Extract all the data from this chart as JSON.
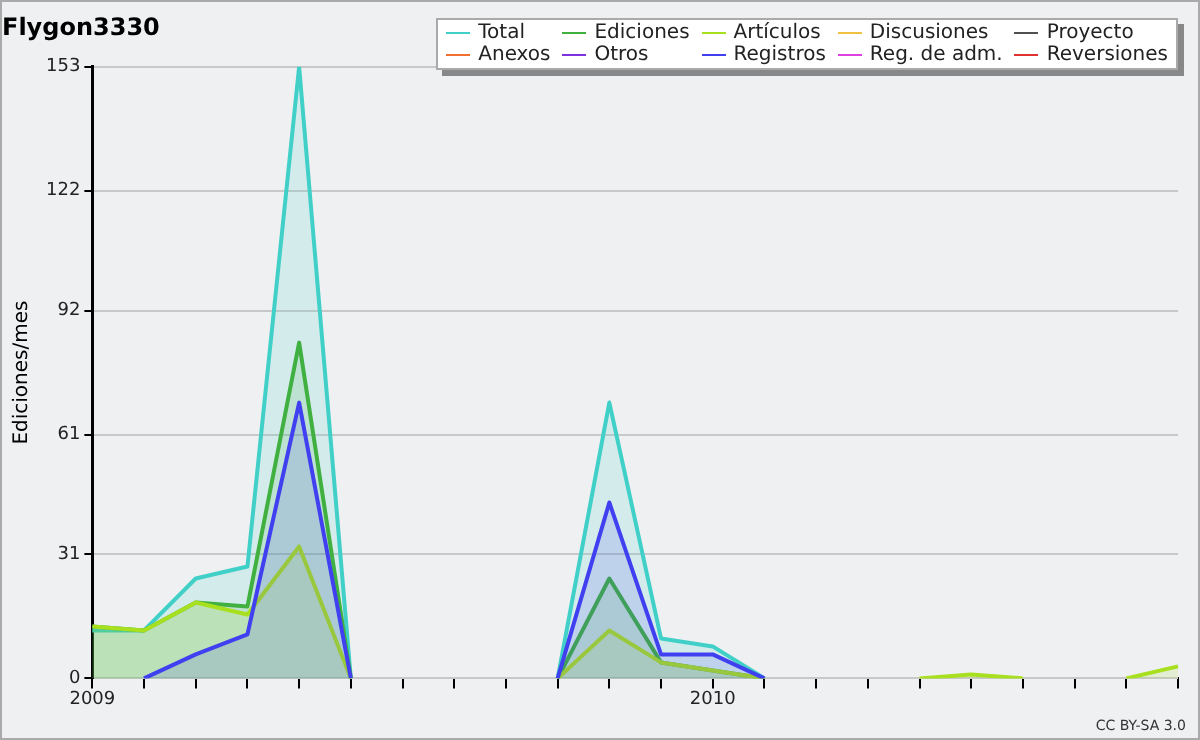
{
  "chart_data": {
    "type": "area",
    "title": "Flygon3330",
    "ylabel": "Ediciones/mes",
    "categories": [
      "2009",
      null,
      null,
      null,
      null,
      null,
      null,
      null,
      null,
      null,
      null,
      null,
      "2010",
      null,
      null,
      null,
      null,
      null,
      null,
      null,
      null,
      null
    ],
    "series": [
      {
        "name": "Total",
        "color": "#40d0c8",
        "values": [
          12,
          12,
          25,
          28,
          153,
          0,
          null,
          null,
          null,
          0,
          69,
          10,
          8,
          0,
          null,
          null,
          null,
          null,
          null,
          null,
          null,
          null
        ]
      },
      {
        "name": "Ediciones",
        "color": "#40b040",
        "values": [
          13,
          12,
          19,
          18,
          84,
          0,
          null,
          null,
          null,
          0,
          25,
          4,
          2,
          0,
          null,
          null,
          null,
          null,
          null,
          null,
          null,
          null
        ]
      },
      {
        "name": "Artículos",
        "color": "#a8e020",
        "values": [
          13,
          12,
          19,
          16,
          33,
          0,
          null,
          null,
          null,
          0,
          12,
          4,
          2,
          0,
          null,
          null,
          0,
          1,
          0,
          null,
          0,
          3
        ]
      },
      {
        "name": "Discusiones",
        "color": "#f0c040",
        "values": [
          null,
          null,
          null,
          null,
          null,
          null,
          null,
          null,
          null,
          null,
          null,
          null,
          null,
          null,
          null,
          null,
          null,
          null,
          null,
          null,
          null,
          null
        ]
      },
      {
        "name": "Proyecto",
        "color": "#505050",
        "values": [
          null,
          null,
          null,
          null,
          null,
          null,
          null,
          null,
          null,
          null,
          null,
          null,
          null,
          null,
          null,
          null,
          null,
          null,
          null,
          null,
          null,
          null
        ]
      },
      {
        "name": "Anexos",
        "color": "#f07030",
        "values": [
          null,
          null,
          null,
          null,
          null,
          null,
          null,
          null,
          null,
          null,
          null,
          null,
          null,
          null,
          null,
          null,
          null,
          null,
          null,
          null,
          null,
          null
        ]
      },
      {
        "name": "Otros",
        "color": "#8030e0",
        "values": [
          null,
          null,
          null,
          null,
          null,
          null,
          null,
          null,
          null,
          null,
          null,
          null,
          null,
          null,
          null,
          null,
          null,
          null,
          null,
          null,
          null,
          null
        ]
      },
      {
        "name": "Registros",
        "color": "#4040f0",
        "values": [
          null,
          0,
          6,
          11,
          69,
          0,
          null,
          null,
          null,
          0,
          44,
          6,
          6,
          0,
          null,
          null,
          null,
          null,
          null,
          null,
          null,
          null
        ]
      },
      {
        "name": "Reg. de adm.",
        "color": "#e040e0",
        "values": [
          null,
          null,
          null,
          null,
          null,
          null,
          null,
          null,
          null,
          null,
          null,
          null,
          null,
          null,
          null,
          null,
          null,
          null,
          null,
          null,
          null,
          null
        ]
      },
      {
        "name": "Reversiones",
        "color": "#e03030",
        "values": [
          null,
          null,
          null,
          null,
          null,
          null,
          null,
          null,
          null,
          null,
          null,
          null,
          null,
          null,
          null,
          null,
          null,
          null,
          null,
          null,
          null,
          null
        ]
      }
    ],
    "ylim": [
      0,
      153
    ],
    "yticks": [
      0,
      31,
      61,
      92,
      122,
      153
    ],
    "grid": "y",
    "legend": "top right",
    "marker": "none",
    "annotations": [
      "CC BY-SA 3.0"
    ]
  }
}
